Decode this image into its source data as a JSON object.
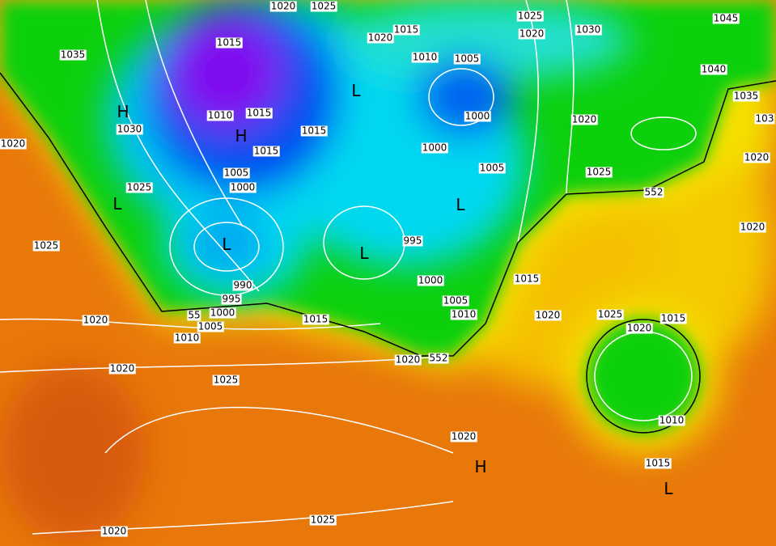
{
  "map": {
    "colors": {
      "orange": "#e8780a",
      "deep_orange": "#d85a10",
      "yellow": "#f5d800",
      "green": "#10d010",
      "cyan": "#00d8f0",
      "blue": "#0060f0",
      "purple": "#8010f0"
    },
    "isobar_labels": [
      "1035",
      "1015",
      "1020",
      "1025",
      "1020",
      "1015",
      "1010",
      "1005",
      "1025",
      "1020",
      "1030",
      "1045",
      "1040",
      "1035",
      "103",
      "1020",
      "1020",
      "1020",
      "1000",
      "1000",
      "1005",
      "1025",
      "552",
      "1010",
      "1015",
      "1030",
      "1015",
      "1015",
      "1005",
      "1000",
      "1025",
      "1020",
      "1025",
      "995",
      "1000",
      "1005",
      "1010",
      "990",
      "995",
      "1000",
      "55",
      "1005",
      "1010",
      "1015",
      "1020",
      "1020",
      "1025",
      "1020",
      "552",
      "1015",
      "1020",
      "1025",
      "1015",
      "1020",
      "1010",
      "1020",
      "1015",
      "1025",
      "1020"
    ],
    "pressure_centers": [
      "H",
      "H",
      "L",
      "L",
      "L",
      "L",
      "L",
      "H",
      "L"
    ]
  }
}
